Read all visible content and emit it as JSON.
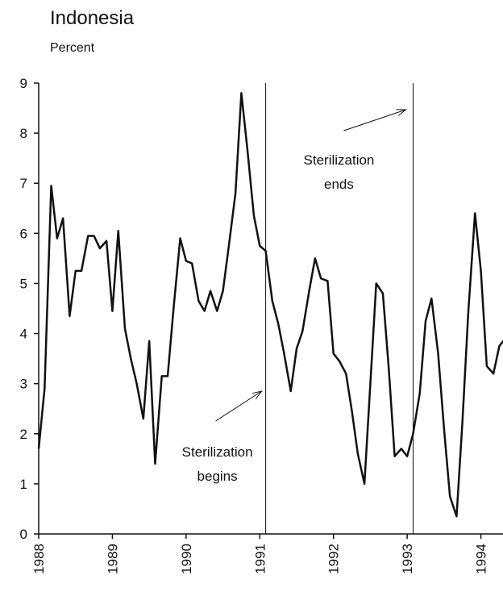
{
  "chart_data": {
    "type": "line",
    "title": "Indonesia",
    "subtitle": "Percent",
    "x": [
      1988,
      1988.08,
      1988.17,
      1988.25,
      1988.33,
      1988.42,
      1988.5,
      1988.58,
      1988.67,
      1988.75,
      1988.83,
      1988.92,
      1989,
      1989.08,
      1989.17,
      1989.25,
      1989.33,
      1989.42,
      1989.5,
      1989.58,
      1989.67,
      1989.75,
      1989.83,
      1989.92,
      1990,
      1990.08,
      1990.17,
      1990.25,
      1990.33,
      1990.42,
      1990.5,
      1990.58,
      1990.67,
      1990.75,
      1990.83,
      1990.92,
      1991,
      1991.08,
      1991.17,
      1991.25,
      1991.33,
      1991.42,
      1991.5,
      1991.58,
      1991.67,
      1991.75,
      1991.83,
      1991.92,
      1992,
      1992.08,
      1992.17,
      1992.25,
      1992.33,
      1992.42,
      1992.5,
      1992.58,
      1992.67,
      1992.75,
      1992.83,
      1992.92,
      1993,
      1993.08,
      1993.17,
      1993.25,
      1993.33,
      1993.42,
      1993.5,
      1993.58,
      1993.67,
      1993.75,
      1993.83,
      1993.92,
      1994,
      1994.08,
      1994.17,
      1994.25,
      1994.33
    ],
    "series": [
      {
        "color": "#111111",
        "values": [
          1.7,
          2.9,
          6.95,
          5.9,
          6.3,
          4.35,
          5.25,
          5.25,
          5.95,
          5.95,
          5.7,
          5.85,
          4.45,
          6.05,
          4.1,
          3.5,
          3.0,
          2.3,
          3.85,
          1.4,
          3.15,
          3.15,
          4.5,
          5.9,
          5.45,
          5.4,
          4.65,
          4.45,
          4.85,
          4.45,
          4.85,
          5.75,
          6.8,
          8.8,
          7.7,
          6.35,
          5.75,
          5.65,
          4.65,
          4.2,
          3.6,
          2.85,
          3.7,
          4.05,
          4.85,
          5.5,
          5.1,
          5.05,
          3.6,
          3.45,
          3.2,
          2.45,
          1.6,
          1.0,
          3.0,
          5.0,
          4.8,
          3.3,
          1.55,
          1.7,
          1.55,
          2.0,
          2.8,
          4.25,
          4.7,
          3.6,
          2.1,
          0.75,
          0.35,
          2.25,
          4.45,
          6.4,
          5.25,
          3.35,
          3.2,
          3.75,
          3.9
        ]
      }
    ],
    "xlim": [
      1988,
      1994.3
    ],
    "xticks": [
      1988,
      1989,
      1990,
      1991,
      1992,
      1993,
      1994
    ],
    "ylim": [
      0,
      9
    ],
    "yticks": [
      0,
      1,
      2,
      3,
      4,
      5,
      6,
      7,
      8,
      9
    ],
    "vlines": [
      {
        "x": 1991.08,
        "label": [
          "Sterilization",
          "begins"
        ]
      },
      {
        "x": 1993.08,
        "label": [
          "Sterilization",
          "ends"
        ]
      }
    ]
  }
}
